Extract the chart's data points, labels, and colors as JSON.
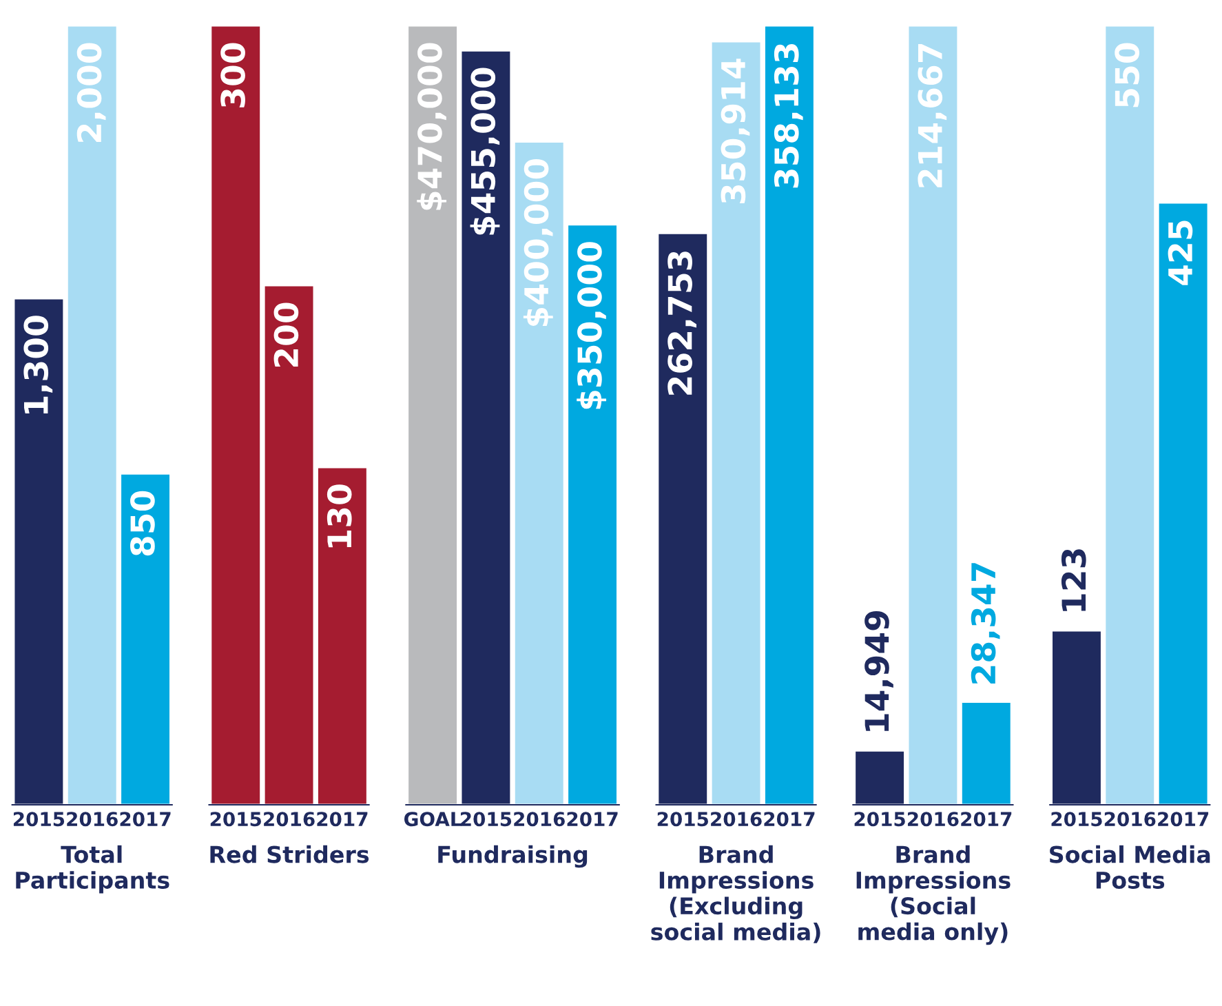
{
  "chart_data": [
    {
      "type": "bar",
      "xlabel": "Total\nParticipants",
      "categories": [
        "2015",
        "2016",
        "2017"
      ],
      "values": [
        1300,
        2000,
        850
      ],
      "value_labels": [
        "1,300",
        "2,000",
        "850"
      ],
      "colors": [
        "#1f2a5e",
        "#a8dcf3",
        "#00a9e0"
      ],
      "tick_labels": "x"
    },
    {
      "type": "bar",
      "xlabel": "Red Striders",
      "categories": [
        "2015",
        "2016",
        "2017"
      ],
      "values": [
        300,
        200,
        130
      ],
      "value_labels": [
        "300",
        "200",
        "130"
      ],
      "colors": [
        "#a51c30",
        "#a51c30",
        "#a51c30"
      ],
      "tick_labels": "x"
    },
    {
      "type": "bar",
      "xlabel": "Fundraising",
      "categories": [
        "GOAL",
        "2015",
        "2016",
        "2017"
      ],
      "values": [
        470000,
        455000,
        400000,
        350000
      ],
      "value_labels": [
        "$470,000",
        "$455,000",
        "$400,000",
        "$350,000"
      ],
      "colors": [
        "#b9babc",
        "#1f2a5e",
        "#a8dcf3",
        "#00a9e0"
      ],
      "tick_labels": "x"
    },
    {
      "type": "bar",
      "xlabel": "Brand\nImpressions\n(Excluding\nsocial media)",
      "categories": [
        "2015",
        "2016",
        "2017"
      ],
      "values": [
        262753,
        350914,
        358133
      ],
      "value_labels": [
        "262,753",
        "350,914",
        "358,133"
      ],
      "colors": [
        "#1f2a5e",
        "#a8dcf3",
        "#00a9e0"
      ],
      "tick_labels": "x"
    },
    {
      "type": "bar",
      "xlabel": "Brand\nImpressions\n(Social\nmedia only)",
      "categories": [
        "2015",
        "2016",
        "2017"
      ],
      "values": [
        14949,
        214667,
        28347
      ],
      "value_labels": [
        "14,949",
        "214,667",
        "28,347"
      ],
      "colors": [
        "#1f2a5e",
        "#a8dcf3",
        "#00a9e0"
      ],
      "tick_labels": "x"
    },
    {
      "type": "bar",
      "xlabel": "Social Media\nPosts",
      "categories": [
        "2015",
        "2016",
        "2017"
      ],
      "values": [
        123,
        550,
        425
      ],
      "value_labels": [
        "123",
        "550",
        "425"
      ],
      "colors": [
        "#1f2a5e",
        "#a8dcf3",
        "#00a9e0"
      ],
      "tick_labels": "x"
    }
  ]
}
